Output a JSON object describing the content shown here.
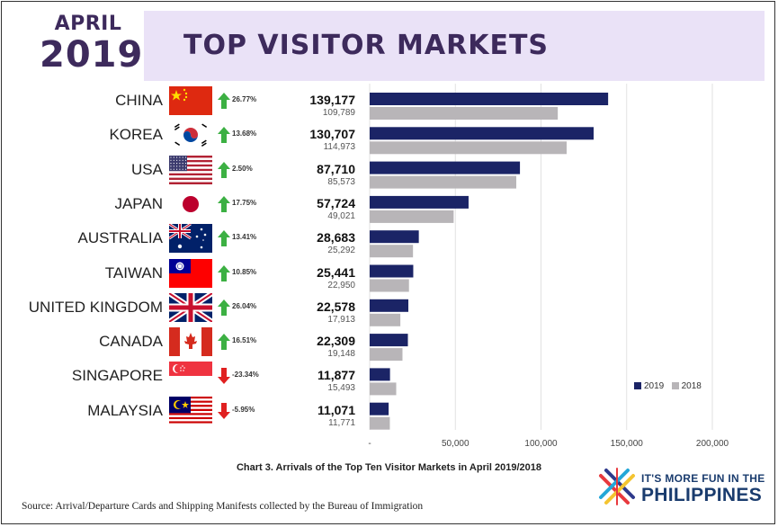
{
  "header": {
    "month": "APRIL",
    "year": "2019",
    "title": "TOP VISITOR MARKETS"
  },
  "markets": [
    {
      "country": "CHINA",
      "flag": "china-flag-icon",
      "change": "26.77%",
      "direction": "up",
      "v2019": "139,177",
      "v2018": "109,789"
    },
    {
      "country": "KOREA",
      "flag": "korea-flag-icon",
      "change": "13.68%",
      "direction": "up",
      "v2019": "130,707",
      "v2018": "114,973"
    },
    {
      "country": "USA",
      "flag": "usa-flag-icon",
      "change": "2.50%",
      "direction": "up",
      "v2019": "87,710",
      "v2018": "85,573"
    },
    {
      "country": "JAPAN",
      "flag": "japan-flag-icon",
      "change": "17.75%",
      "direction": "up",
      "v2019": "57,724",
      "v2018": "49,021"
    },
    {
      "country": "AUSTRALIA",
      "flag": "australia-flag-icon",
      "change": "13.41%",
      "direction": "up",
      "v2019": "28,683",
      "v2018": "25,292"
    },
    {
      "country": "TAIWAN",
      "flag": "taiwan-flag-icon",
      "change": "10.85%",
      "direction": "up",
      "v2019": "25,441",
      "v2018": "22,950"
    },
    {
      "country": "UNITED KINGDOM",
      "flag": "uk-flag-icon",
      "change": "26.04%",
      "direction": "up",
      "v2019": "22,578",
      "v2018": "17,913"
    },
    {
      "country": "CANADA",
      "flag": "canada-flag-icon",
      "change": "16.51%",
      "direction": "up",
      "v2019": "22,309",
      "v2018": "19,148"
    },
    {
      "country": "SINGAPORE",
      "flag": "singapore-flag-icon",
      "change": "-23.34%",
      "direction": "down",
      "v2019": "11,877",
      "v2018": "15,493"
    },
    {
      "country": "MALAYSIA",
      "flag": "malaysia-flag-icon",
      "change": "-5.95%",
      "direction": "down",
      "v2019": "11,071",
      "v2018": "11,771"
    }
  ],
  "colors": {
    "series_2019": "#1b2466",
    "series_2018": "#b8b5b8",
    "arrow_up": "#3cb043",
    "arrow_down": "#e02020",
    "title_text": "#3d2a5c",
    "banner": "#eae2f7"
  },
  "chart_data": {
    "type": "bar",
    "orientation": "horizontal",
    "categories": [
      "CHINA",
      "KOREA",
      "USA",
      "JAPAN",
      "AUSTRALIA",
      "TAIWAN",
      "UNITED KINGDOM",
      "CANADA",
      "SINGAPORE",
      "MALAYSIA"
    ],
    "series": [
      {
        "name": "2019",
        "values": [
          139177,
          130707,
          87710,
          57724,
          28683,
          25441,
          22578,
          22309,
          11877,
          11071
        ]
      },
      {
        "name": "2018",
        "values": [
          109789,
          114973,
          85573,
          49021,
          25292,
          22950,
          17913,
          19148,
          15493,
          11771
        ]
      }
    ],
    "x_ticks": [
      "-",
      "50,000",
      "100,000",
      "150,000",
      "200,000"
    ],
    "xlim": [
      0,
      200000
    ],
    "grid": true,
    "legend": [
      "2019",
      "2018"
    ],
    "legend_position": "right",
    "caption": "Chart 3. Arrivals of the Top Ten Visitor Markets in April 2019/2018"
  },
  "source_note": "Source: Arrival/Departure Cards and Shipping Manifests collected by the Bureau of Immigration",
  "branding": {
    "line1": "IT'S MORE FUN IN THE",
    "line2": "PHILIPPINES"
  }
}
